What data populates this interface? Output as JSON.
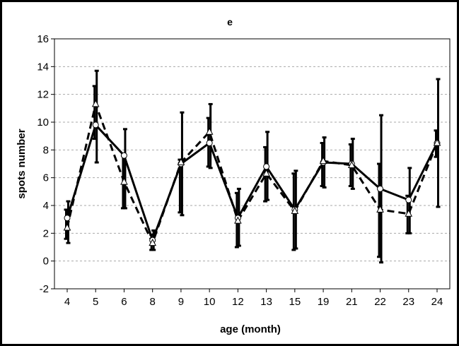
{
  "chart_data": {
    "type": "line",
    "title": "e",
    "xlabel": "age (month)",
    "ylabel": "spots number",
    "categories": [
      "4",
      "5",
      "6",
      "8",
      "9",
      "10",
      "12",
      "13",
      "15",
      "19",
      "21",
      "22",
      "23",
      "24"
    ],
    "ylim": [
      -2,
      16
    ],
    "yticks": [
      -2,
      0,
      2,
      4,
      6,
      8,
      10,
      12,
      14,
      16
    ],
    "grid": "horizontal dashed",
    "series": [
      {
        "style": "solid, circle markers",
        "values": [
          3.1,
          9.8,
          7.6,
          1.5,
          7.0,
          8.5,
          3.1,
          6.8,
          3.7,
          7.1,
          7.0,
          5.2,
          4.4,
          8.5
        ],
        "err_low": [
          1.3,
          7.1,
          3.8,
          0.8,
          3.3,
          6.7,
          1.1,
          4.4,
          0.9,
          5.3,
          5.2,
          -0.1,
          2.0,
          3.9
        ],
        "err_high": [
          4.3,
          13.7,
          9.5,
          2.2,
          10.7,
          11.3,
          5.2,
          9.3,
          6.5,
          8.9,
          8.8,
          10.5,
          6.7,
          13.1
        ]
      },
      {
        "style": "dashed, triangle markers",
        "values": [
          2.4,
          11.3,
          5.7,
          1.3,
          7.1,
          9.3,
          2.9,
          6.3,
          3.6,
          7.2,
          6.9,
          3.7,
          3.4,
          8.5
        ],
        "err_low": [
          1.6,
          8.8,
          3.8,
          0.8,
          3.5,
          6.8,
          1.0,
          4.3,
          0.8,
          5.4,
          5.4,
          0.3,
          2.0,
          7.5
        ],
        "err_high": [
          3.7,
          12.6,
          7.6,
          1.9,
          7.3,
          10.3,
          4.9,
          8.2,
          6.3,
          8.5,
          8.4,
          7.0,
          4.7,
          9.4
        ]
      }
    ],
    "colors": {
      "line": "#000000",
      "grid": "#aaaaaa",
      "marker_fill": "#ffffff"
    }
  }
}
